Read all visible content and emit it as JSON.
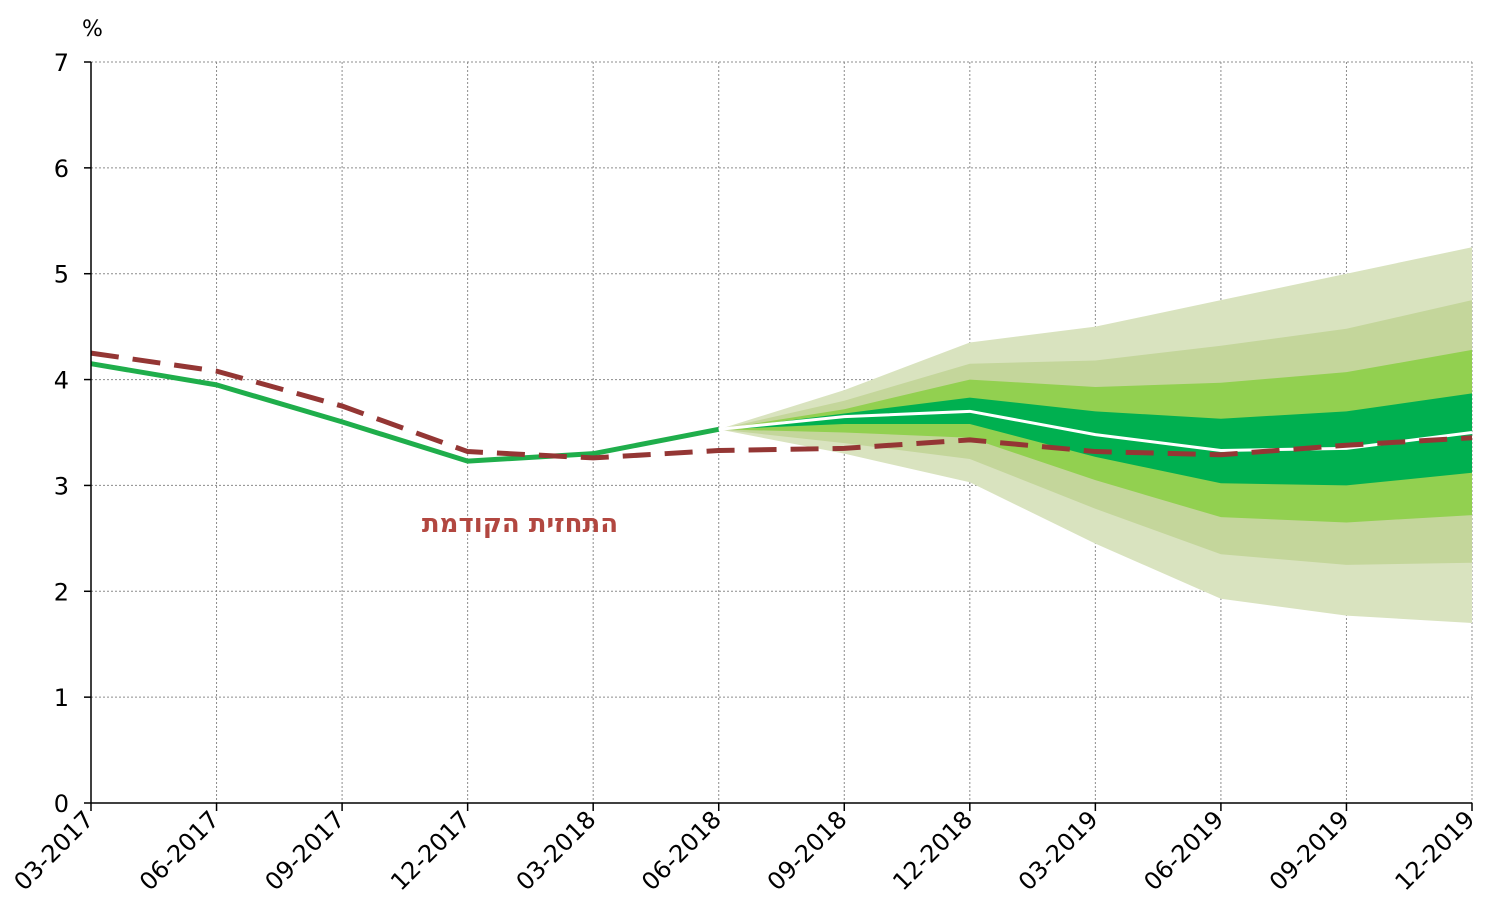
{
  "chart_data": {
    "type": "line",
    "ylabel": "%",
    "ylim": [
      0,
      7
    ],
    "yticks": [
      "0",
      "1",
      "2",
      "3",
      "4",
      "5",
      "6",
      "7"
    ],
    "categories": [
      "03-2017",
      "06-2017",
      "09-2017",
      "12-2017",
      "03-2018",
      "06-2018",
      "09-2018",
      "12-2018",
      "03-2019",
      "06-2019",
      "09-2019",
      "12-2019"
    ],
    "grid": true,
    "series": [
      {
        "name": "",
        "style": "solid",
        "color": "#1fae4b",
        "values": [
          4.15,
          3.95,
          3.6,
          3.23,
          3.3,
          3.53,
          null,
          null,
          null,
          null,
          null,
          null
        ]
      },
      {
        "name": "התחזית הקודמת",
        "style": "dashed",
        "color": "#943634",
        "values": [
          4.25,
          4.08,
          3.75,
          3.32,
          3.26,
          3.33,
          3.35,
          3.43,
          3.32,
          3.29,
          3.38,
          3.45
        ]
      },
      {
        "name": "",
        "style": "solid",
        "color": "#ffffff",
        "values": [
          null,
          null,
          null,
          null,
          null,
          3.53,
          3.65,
          3.7,
          3.48,
          3.33,
          3.35,
          3.5
        ]
      }
    ],
    "fan_bands": {
      "start_index": 5,
      "start_value": 3.53,
      "bands": [
        {
          "color": "#d9e3bf",
          "upper": [
            3.9,
            4.35,
            4.5,
            4.75,
            5.0,
            5.25
          ],
          "lower": [
            3.3,
            3.03,
            2.45,
            1.93,
            1.77,
            1.7
          ]
        },
        {
          "color": "#c4d69b",
          "upper": [
            3.8,
            4.15,
            4.18,
            4.32,
            4.48,
            4.75
          ],
          "lower": [
            3.4,
            3.25,
            2.78,
            2.35,
            2.25,
            2.27
          ]
        },
        {
          "color": "#92d050",
          "upper": [
            3.72,
            4.0,
            3.93,
            3.97,
            4.07,
            4.28
          ],
          "lower": [
            3.5,
            3.45,
            3.05,
            2.7,
            2.65,
            2.72
          ]
        },
        {
          "color": "#00b050",
          "upper": [
            3.68,
            3.83,
            3.7,
            3.63,
            3.7,
            3.87
          ],
          "lower": [
            3.58,
            3.58,
            3.27,
            3.02,
            3.0,
            3.12
          ]
        }
      ]
    },
    "annotations": [
      {
        "text": "התחזית הקודמת",
        "color": "#b24740"
      }
    ]
  }
}
